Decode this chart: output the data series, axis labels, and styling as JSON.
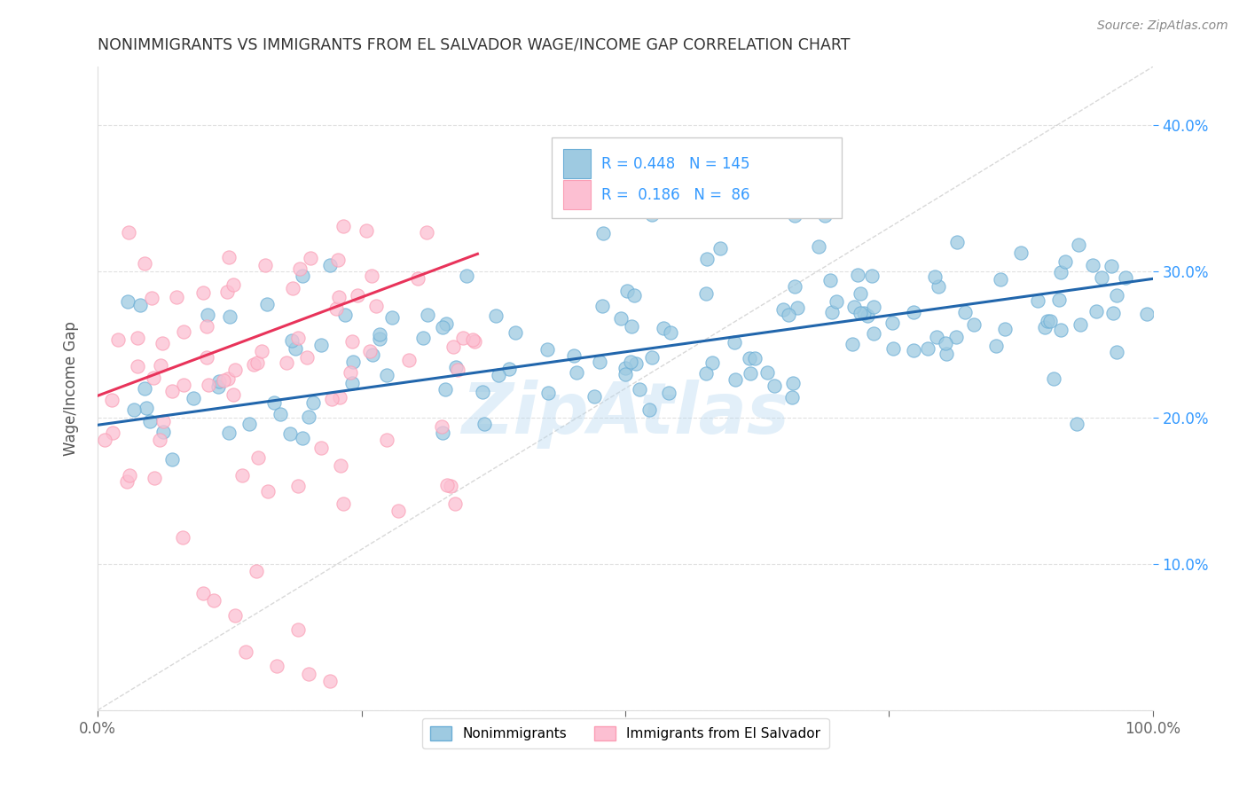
{
  "title": "NONIMMIGRANTS VS IMMIGRANTS FROM EL SALVADOR WAGE/INCOME GAP CORRELATION CHART",
  "source": "Source: ZipAtlas.com",
  "ylabel": "Wage/Income Gap",
  "right_yticklabels": [
    "10.0%",
    "20.0%",
    "30.0%",
    "40.0%"
  ],
  "right_ytick_vals": [
    0.1,
    0.2,
    0.3,
    0.4
  ],
  "legend_labels": [
    "Nonimmigrants",
    "Immigrants from El Salvador"
  ],
  "blue_R": "0.448",
  "blue_N": "145",
  "pink_R": "0.186",
  "pink_N": "86",
  "blue_color": "#9ecae1",
  "pink_color": "#fcbfd2",
  "blue_edge_color": "#6baed6",
  "pink_edge_color": "#fb9eb5",
  "blue_line_color": "#2166ac",
  "pink_line_color": "#e8335a",
  "ref_line_color": "#c8c8c8",
  "watermark": "ZipAtlas",
  "watermark_color": "#b8d8f0",
  "legend_text_color": "#3399ff",
  "xlim": [
    0.0,
    1.0
  ],
  "ylim": [
    0.0,
    0.44
  ],
  "blue_trend": [
    0.0,
    1.0,
    0.195,
    0.295
  ],
  "pink_trend": [
    0.0,
    0.36,
    0.215,
    0.312
  ],
  "ref_line": [
    0.0,
    1.0,
    0.0,
    0.44
  ]
}
